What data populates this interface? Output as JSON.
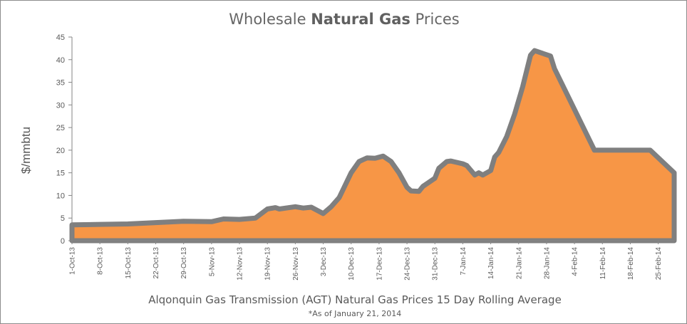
{
  "chart_data": {
    "type": "area",
    "title_prefix": "Wholesale",
    "title_bold": "Natural Gas",
    "title_suffix": "Prices",
    "xlabel": "Alqonquin Gas Transmission (AGT) Natural Gas Prices 15 Day Rolling Average",
    "ylabel": "$/mmbtu",
    "note": "*As of January 21, 2014",
    "ylim": [
      0,
      45
    ],
    "yticks": [
      0,
      5,
      10,
      15,
      20,
      25,
      30,
      35,
      40,
      45
    ],
    "xlim": [
      "2013-10-01",
      "2014-03-01"
    ],
    "xticks": [
      "1-Oct-13",
      "8-Oct-13",
      "15-Oct-13",
      "22-Oct-13",
      "29-Oct-13",
      "5-Nov-13",
      "12-Nov-13",
      "19-Nov-13",
      "26-Nov-13",
      "3-Dec-13",
      "10-Dec-13",
      "17-Dec-13",
      "24-Dec-13",
      "31-Dec-13",
      "7-Jan-14",
      "14-Jan-14",
      "21-Jan-14",
      "28-Jan-14",
      "4-Feb-14",
      "11-Feb-14",
      "18-Feb-14",
      "25-Feb-14"
    ],
    "grid": false,
    "fill_color": "#f79646",
    "line_color": "#7f7f7f",
    "series": [
      {
        "values": [
          {
            "x": "2013-10-01",
            "y": 3.5
          },
          {
            "x": "2013-10-08",
            "y": 3.6
          },
          {
            "x": "2013-10-15",
            "y": 3.7
          },
          {
            "x": "2013-10-22",
            "y": 4.0
          },
          {
            "x": "2013-10-29",
            "y": 4.3
          },
          {
            "x": "2013-11-05",
            "y": 4.2
          },
          {
            "x": "2013-11-08",
            "y": 4.8
          },
          {
            "x": "2013-11-12",
            "y": 4.7
          },
          {
            "x": "2013-11-16",
            "y": 5.0
          },
          {
            "x": "2013-11-19",
            "y": 7.0
          },
          {
            "x": "2013-11-21",
            "y": 7.3
          },
          {
            "x": "2013-11-22",
            "y": 7.0
          },
          {
            "x": "2013-11-26",
            "y": 7.5
          },
          {
            "x": "2013-11-28",
            "y": 7.2
          },
          {
            "x": "2013-11-30",
            "y": 7.4
          },
          {
            "x": "2013-12-03",
            "y": 6.0
          },
          {
            "x": "2013-12-05",
            "y": 7.5
          },
          {
            "x": "2013-12-07",
            "y": 9.5
          },
          {
            "x": "2013-12-10",
            "y": 15.0
          },
          {
            "x": "2013-12-12",
            "y": 17.5
          },
          {
            "x": "2013-12-14",
            "y": 18.3
          },
          {
            "x": "2013-12-16",
            "y": 18.2
          },
          {
            "x": "2013-12-18",
            "y": 18.7
          },
          {
            "x": "2013-12-20",
            "y": 17.5
          },
          {
            "x": "2013-12-22",
            "y": 15.0
          },
          {
            "x": "2013-12-24",
            "y": 11.8
          },
          {
            "x": "2013-12-25",
            "y": 11.0
          },
          {
            "x": "2013-12-27",
            "y": 10.9
          },
          {
            "x": "2013-12-28",
            "y": 12.0
          },
          {
            "x": "2013-12-31",
            "y": 13.8
          },
          {
            "x": "2014-01-01",
            "y": 16.0
          },
          {
            "x": "2014-01-03",
            "y": 17.5
          },
          {
            "x": "2014-01-04",
            "y": 17.6
          },
          {
            "x": "2014-01-07",
            "y": 17.0
          },
          {
            "x": "2014-01-08",
            "y": 16.6
          },
          {
            "x": "2014-01-10",
            "y": 14.5
          },
          {
            "x": "2014-01-11",
            "y": 15.0
          },
          {
            "x": "2014-01-12",
            "y": 14.5
          },
          {
            "x": "2014-01-14",
            "y": 15.5
          },
          {
            "x": "2014-01-15",
            "y": 18.5
          },
          {
            "x": "2014-01-16",
            "y": 19.5
          },
          {
            "x": "2014-01-18",
            "y": 23.0
          },
          {
            "x": "2014-01-20",
            "y": 28.0
          },
          {
            "x": "2014-01-22",
            "y": 34.0
          },
          {
            "x": "2014-01-24",
            "y": 41.0
          },
          {
            "x": "2014-01-25",
            "y": 42.0
          },
          {
            "x": "2014-01-29",
            "y": 40.8
          },
          {
            "x": "2014-01-30",
            "y": 38.0
          },
          {
            "x": "2014-02-09",
            "y": 20.0
          },
          {
            "x": "2014-02-23",
            "y": 20.0
          },
          {
            "x": "2014-03-01",
            "y": 15.0
          }
        ]
      }
    ]
  }
}
